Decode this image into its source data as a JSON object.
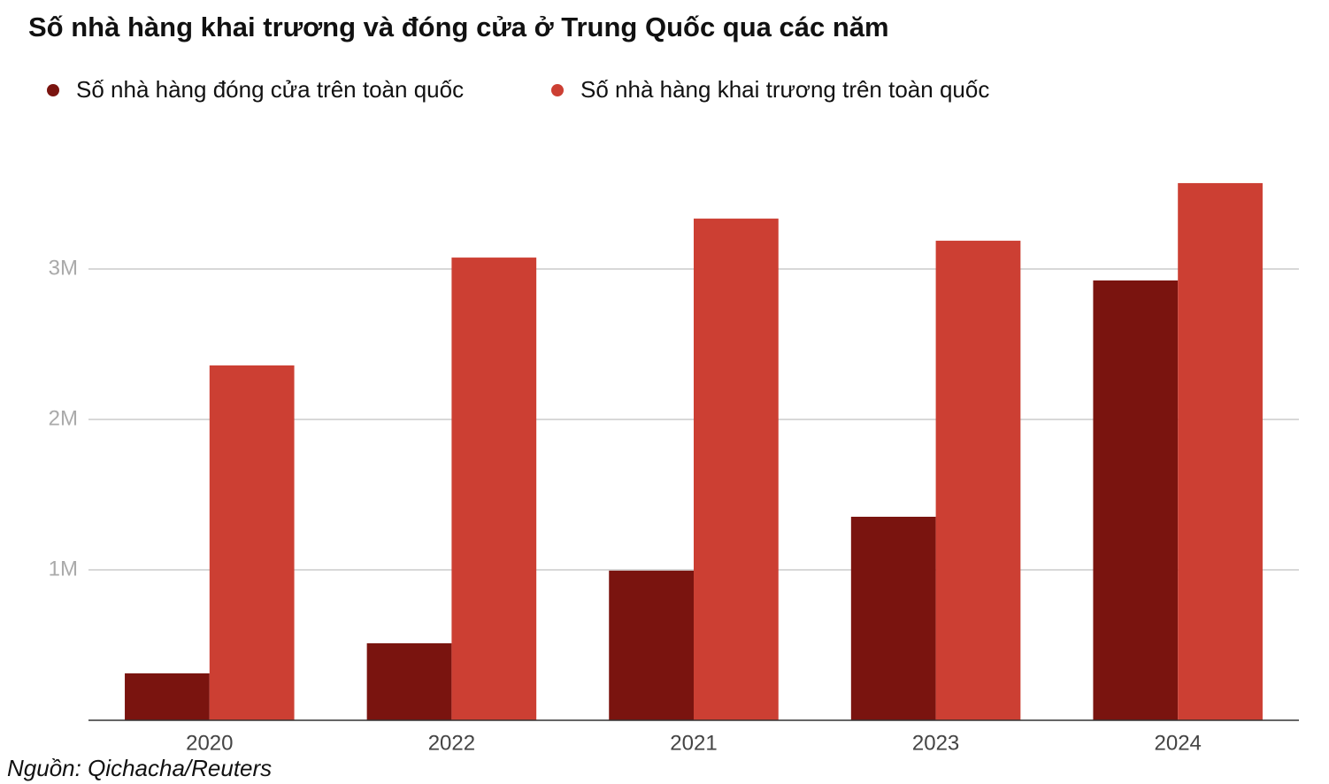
{
  "chart_data": {
    "type": "bar",
    "title": "Số nhà hàng khai trương và đóng cửa ở Trung Quốc qua các năm",
    "source": "Nguồn: Qichacha/Reuters",
    "categories": [
      "2020",
      "2022",
      "2021",
      "2023",
      "2024"
    ],
    "series": [
      {
        "name": "Số nhà hàng đóng cửa trên toàn quốc",
        "color": "#7a140f",
        "values": [
          312000,
          512000,
          995000,
          1353000,
          2924000
        ]
      },
      {
        "name": "Số nhà hàng khai trương trên toàn quốc",
        "color": "#cc3f33",
        "values": [
          2359000,
          3076000,
          3335000,
          3188000,
          3571000
        ]
      }
    ],
    "ylim": [
      0,
      3800000
    ],
    "yticks": [
      {
        "value": 1000000,
        "label": "1M"
      },
      {
        "value": 2000000,
        "label": "2M"
      },
      {
        "value": 3000000,
        "label": "3M"
      }
    ],
    "grid": true
  }
}
